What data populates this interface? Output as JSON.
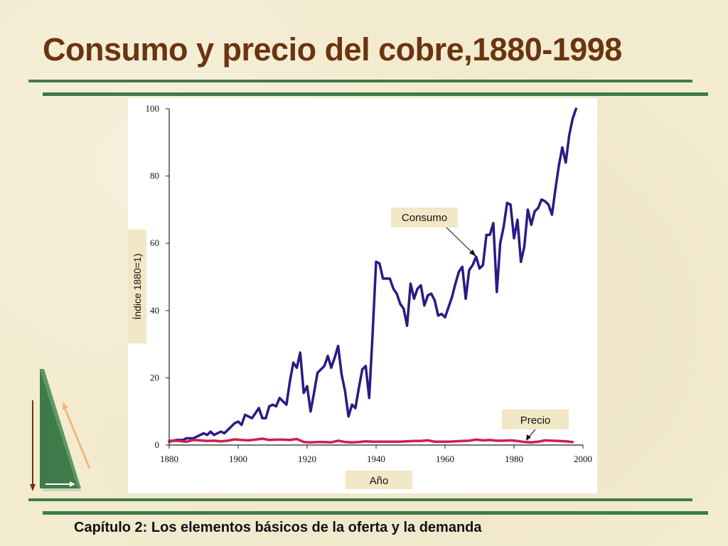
{
  "title": "Consumo y precio del cobre,1880-1998",
  "footer": "Capítulo 2: Los elementos básicos de la oferta y la demanda",
  "colors": {
    "title": "#6b3410",
    "rule": "#3f7a4a",
    "consumo": "#2a1a86",
    "precio": "#cc1f4f",
    "label_box": "#f2e7c6"
  },
  "chart_data": {
    "type": "line",
    "xlabel": "Año",
    "ylabel": "Índice 1880=1)",
    "xlim": [
      1880,
      2000
    ],
    "ylim": [
      0,
      100
    ],
    "x_ticks": [
      "1880",
      "1900",
      "1920",
      "1940",
      "1960",
      "1980",
      "2000"
    ],
    "y_ticks": [
      "0",
      "20",
      "40",
      "60",
      "80",
      "100"
    ],
    "grid": false,
    "series": [
      {
        "name": "Consumo",
        "x": [
          1880,
          1882,
          1884,
          1885,
          1887,
          1888,
          1890,
          1891,
          1892,
          1893,
          1894,
          1895,
          1896,
          1897,
          1898,
          1899,
          1900,
          1901,
          1902,
          1903,
          1904,
          1905,
          1906,
          1907,
          1908,
          1909,
          1910,
          1911,
          1912,
          1913,
          1914,
          1915,
          1916,
          1917,
          1918,
          1919,
          1920,
          1921,
          1922,
          1923,
          1924,
          1925,
          1926,
          1927,
          1928,
          1929,
          1930,
          1931,
          1932,
          1933,
          1934,
          1935,
          1936,
          1937,
          1938,
          1939,
          1940,
          1941,
          1942,
          1943,
          1944,
          1945,
          1946,
          1947,
          1948,
          1949,
          1950,
          1951,
          1952,
          1953,
          1954,
          1955,
          1956,
          1957,
          1958,
          1959,
          1960,
          1961,
          1962,
          1963,
          1964,
          1965,
          1966,
          1967,
          1968,
          1969,
          1970,
          1971,
          1972,
          1973,
          1974,
          1975,
          1976,
          1977,
          1978,
          1979,
          1980,
          1981,
          1982,
          1983,
          1984,
          1985,
          1986,
          1987,
          1988,
          1989,
          1990,
          1991,
          1992,
          1993,
          1994,
          1995,
          1996,
          1997,
          1998
        ],
        "values": [
          1,
          1.5,
          1.5,
          2,
          2,
          2.5,
          3.5,
          3,
          4,
          3,
          3.5,
          4,
          3.5,
          4.5,
          5.5,
          6.5,
          7,
          6,
          9,
          8.5,
          8,
          9.5,
          11,
          8,
          8,
          11.5,
          12,
          11.5,
          14,
          13,
          12,
          19,
          24.5,
          23,
          27.5,
          15.5,
          17.5,
          10,
          15.5,
          21.5,
          22.5,
          23.5,
          26.5,
          23,
          26,
          29.5,
          21,
          16,
          8.5,
          12,
          11,
          17,
          22.5,
          23.5,
          14,
          33,
          54.5,
          54,
          49.5,
          49.5,
          49.5,
          46.5,
          45,
          42,
          40.5,
          35.5,
          48,
          43.5,
          46.5,
          47.5,
          41.5,
          44.5,
          45,
          43,
          38.5,
          39,
          38,
          41,
          44,
          48,
          51.5,
          53,
          43.5,
          52,
          53.5,
          56,
          52.5,
          53.5,
          62.5,
          62.5,
          66,
          45.5,
          60,
          65,
          72,
          71.5,
          61.5,
          67,
          54.5,
          59,
          70,
          65.5,
          69.5,
          70.5,
          73,
          72.5,
          71.5,
          68.5,
          76,
          83,
          88.5,
          84,
          92,
          97,
          100
        ]
      },
      {
        "name": "Precio",
        "x": [
          1880,
          1883,
          1885,
          1887,
          1889,
          1891,
          1893,
          1895,
          1897,
          1899,
          1901,
          1903,
          1905,
          1907,
          1909,
          1911,
          1913,
          1915,
          1917,
          1919,
          1921,
          1923,
          1925,
          1927,
          1929,
          1931,
          1933,
          1935,
          1937,
          1939,
          1941,
          1943,
          1945,
          1947,
          1949,
          1951,
          1953,
          1955,
          1957,
          1959,
          1961,
          1963,
          1965,
          1967,
          1969,
          1971,
          1973,
          1975,
          1977,
          1979,
          1981,
          1983,
          1985,
          1987,
          1989,
          1991,
          1993,
          1995,
          1997
        ],
        "values": [
          1.3,
          1.2,
          1.0,
          1.5,
          1.4,
          1.2,
          1.3,
          1.1,
          1.3,
          1.7,
          1.5,
          1.4,
          1.6,
          1.9,
          1.5,
          1.6,
          1.6,
          1.5,
          1.8,
          0.9,
          0.8,
          0.9,
          0.9,
          0.8,
          1.3,
          0.9,
          0.8,
          0.9,
          1.1,
          1.0,
          1.0,
          1.0,
          1.0,
          1.0,
          1.1,
          1.2,
          1.2,
          1.4,
          1.0,
          1.0,
          1.0,
          1.1,
          1.2,
          1.3,
          1.6,
          1.4,
          1.5,
          1.3,
          1.3,
          1.4,
          1.2,
          0.9,
          0.8,
          1.0,
          1.4,
          1.3,
          1.2,
          1.1,
          0.9
        ]
      }
    ]
  }
}
